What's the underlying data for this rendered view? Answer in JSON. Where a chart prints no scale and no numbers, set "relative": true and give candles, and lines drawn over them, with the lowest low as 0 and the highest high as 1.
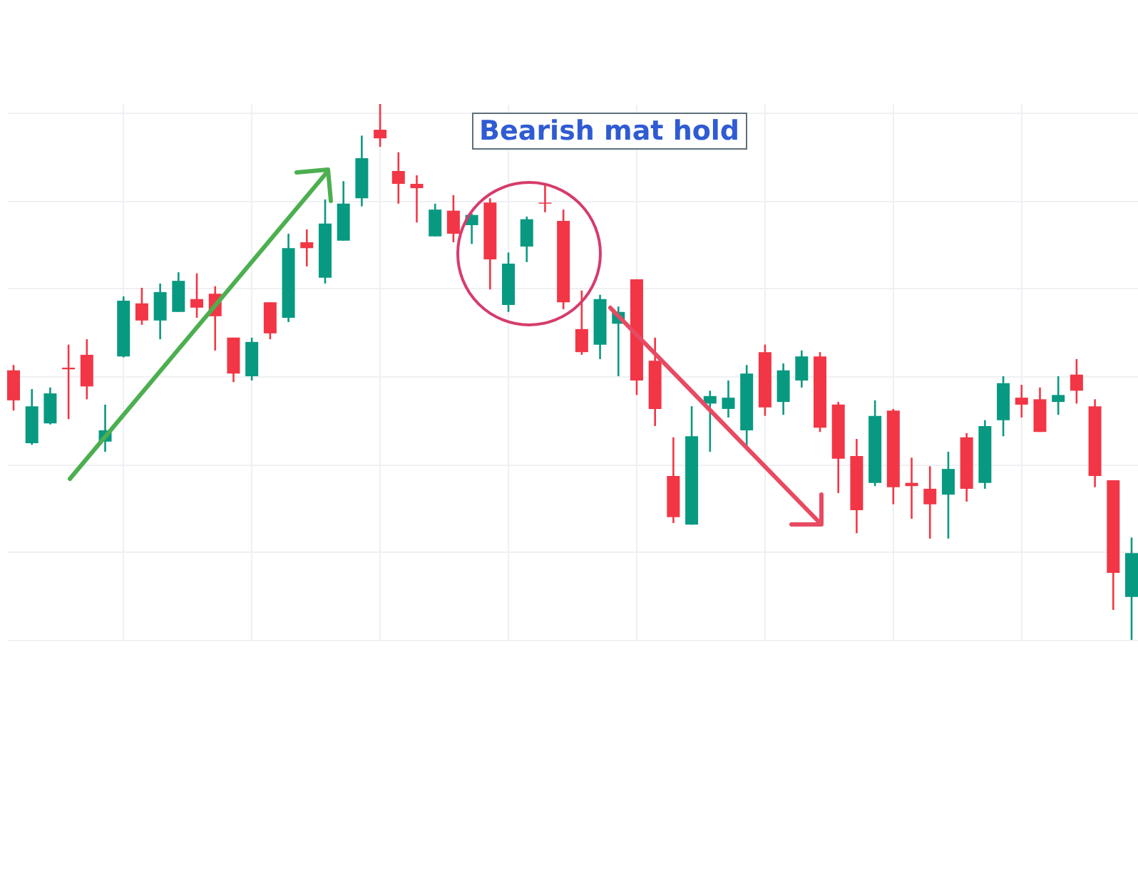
{
  "chart_data": {
    "type": "candlestick",
    "relative": true,
    "grid": true,
    "annotations": [
      "Bearish mat hold"
    ],
    "categories": [
      null,
      null,
      null,
      null,
      null,
      null,
      null,
      null,
      null,
      null,
      null,
      null,
      null,
      null,
      null,
      null,
      null,
      null,
      null,
      null,
      null,
      null,
      null,
      null,
      null,
      null,
      null,
      null,
      null,
      null,
      null,
      null,
      null,
      null,
      null,
      null,
      null,
      null,
      null,
      null,
      null,
      null,
      null,
      null,
      null,
      null,
      null,
      null,
      null,
      null,
      null,
      null,
      null,
      null,
      null,
      null,
      null,
      null,
      null,
      null,
      null,
      null
    ],
    "ohlc": [
      [
        0.503,
        0.513,
        0.428,
        0.447
      ],
      [
        0.367,
        0.468,
        0.364,
        0.436
      ],
      [
        0.404,
        0.471,
        0.402,
        0.46
      ],
      [
        0.508,
        0.551,
        0.412,
        0.505
      ],
      [
        0.532,
        0.561,
        0.449,
        0.473
      ],
      [
        0.37,
        0.439,
        0.351,
        0.391
      ],
      [
        0.529,
        0.641,
        0.527,
        0.633
      ],
      [
        0.628,
        0.657,
        0.588,
        0.596
      ],
      [
        0.596,
        0.665,
        0.561,
        0.649
      ],
      [
        0.612,
        0.686,
        0.612,
        0.67
      ],
      [
        0.636,
        0.684,
        0.601,
        0.62
      ],
      [
        0.646,
        0.66,
        0.54,
        0.604
      ],
      [
        0.564,
        0.564,
        0.481,
        0.497
      ],
      [
        0.492,
        0.564,
        0.484,
        0.556
      ],
      [
        0.63,
        0.63,
        0.561,
        0.572
      ],
      [
        0.601,
        0.758,
        0.593,
        0.731
      ],
      [
        0.742,
        0.766,
        0.697,
        0.731
      ],
      [
        0.676,
        0.822,
        0.665,
        0.777
      ],
      [
        0.745,
        0.856,
        0.745,
        0.814
      ],
      [
        0.824,
        0.941,
        0.809,
        0.899
      ],
      [
        0.952,
        1,
        0.92,
        0.936
      ],
      [
        0.875,
        0.91,
        0.814,
        0.851
      ],
      [
        0.851,
        0.867,
        0.779,
        0.843
      ],
      [
        0.753,
        0.814,
        0.753,
        0.803
      ],
      [
        0.801,
        0.83,
        0.742,
        0.758
      ],
      [
        0.774,
        0.795,
        0.739,
        0.793
      ],
      [
        0.816,
        0.824,
        0.654,
        0.71
      ],
      [
        0.625,
        0.723,
        0.612,
        0.702
      ],
      [
        0.734,
        0.79,
        0.705,
        0.785
      ],
      [
        0.816,
        0.851,
        0.798,
        0.814
      ],
      [
        0.782,
        0.803,
        0.617,
        0.63
      ],
      [
        0.58,
        0.652,
        0.532,
        0.537
      ],
      [
        0.551,
        0.644,
        0.524,
        0.636
      ],
      [
        0.59,
        0.622,
        0.492,
        0.612
      ],
      [
        0.673,
        0.673,
        0.457,
        0.484
      ],
      [
        0.521,
        0.564,
        0.399,
        0.431
      ],
      [
        0.306,
        0.378,
        0.218,
        0.229
      ],
      [
        0.215,
        0.436,
        0.215,
        0.38
      ],
      [
        0.441,
        0.465,
        0.351,
        0.455
      ],
      [
        0.431,
        0.484,
        0.415,
        0.452
      ],
      [
        0.391,
        0.513,
        0.362,
        0.497
      ],
      [
        0.537,
        0.551,
        0.418,
        0.434
      ],
      [
        0.444,
        0.516,
        0.42,
        0.503
      ],
      [
        0.484,
        0.54,
        0.471,
        0.529
      ],
      [
        0.529,
        0.537,
        0.388,
        0.396
      ],
      [
        0.439,
        0.444,
        0.274,
        0.338
      ],
      [
        0.343,
        0.375,
        0.199,
        0.242
      ],
      [
        0.293,
        0.447,
        0.287,
        0.418
      ],
      [
        0.428,
        0.431,
        0.253,
        0.285
      ],
      [
        0.293,
        0.34,
        0.226,
        0.287
      ],
      [
        0.282,
        0.324,
        0.189,
        0.253
      ],
      [
        0.271,
        0.351,
        0.189,
        0.319
      ],
      [
        0.378,
        0.386,
        0.258,
        0.282
      ],
      [
        0.293,
        0.41,
        0.282,
        0.399
      ],
      [
        0.41,
        0.492,
        0.38,
        0.479
      ],
      [
        0.452,
        0.476,
        0.415,
        0.439
      ],
      [
        0.449,
        0.471,
        0.388,
        0.388
      ],
      [
        0.444,
        0.492,
        0.42,
        0.457
      ],
      [
        0.495,
        0.524,
        0.441,
        0.465
      ],
      [
        0.436,
        0.449,
        0.285,
        0.306
      ],
      [
        0.298,
        0.298,
        0.056,
        0.125
      ],
      [
        0.08,
        0.191,
        0,
        0.162
      ]
    ],
    "colors": [
      "#f23645",
      "#089981",
      "#089981",
      "#f23645",
      "#f23645",
      "#089981",
      "#089981",
      "#f23645",
      "#089981",
      "#089981",
      "#f23645",
      "#f23645",
      "#f23645",
      "#089981",
      "#f23645",
      "#089981",
      "#f23645",
      "#089981",
      "#089981",
      "#089981",
      "#f23645",
      "#f23645",
      "#f23645",
      "#089981",
      "#f23645",
      "#089981",
      "#f23645",
      "#089981",
      "#089981",
      "#f23645",
      "#f23645",
      "#f23645",
      "#089981",
      "#089981",
      "#f23645",
      "#f23645",
      "#f23645",
      "#089981",
      "#089981",
      "#089981",
      "#089981",
      "#f23645",
      "#089981",
      "#089981",
      "#f23645",
      "#f23645",
      "#f23645",
      "#089981",
      "#f23645",
      "#f23645",
      "#f23645",
      "#089981",
      "#f23645",
      "#089981",
      "#089981",
      "#f23645",
      "#f23645",
      "#089981",
      "#f23645",
      "#f23645",
      "#f23645",
      "#089981"
    ]
  }
}
